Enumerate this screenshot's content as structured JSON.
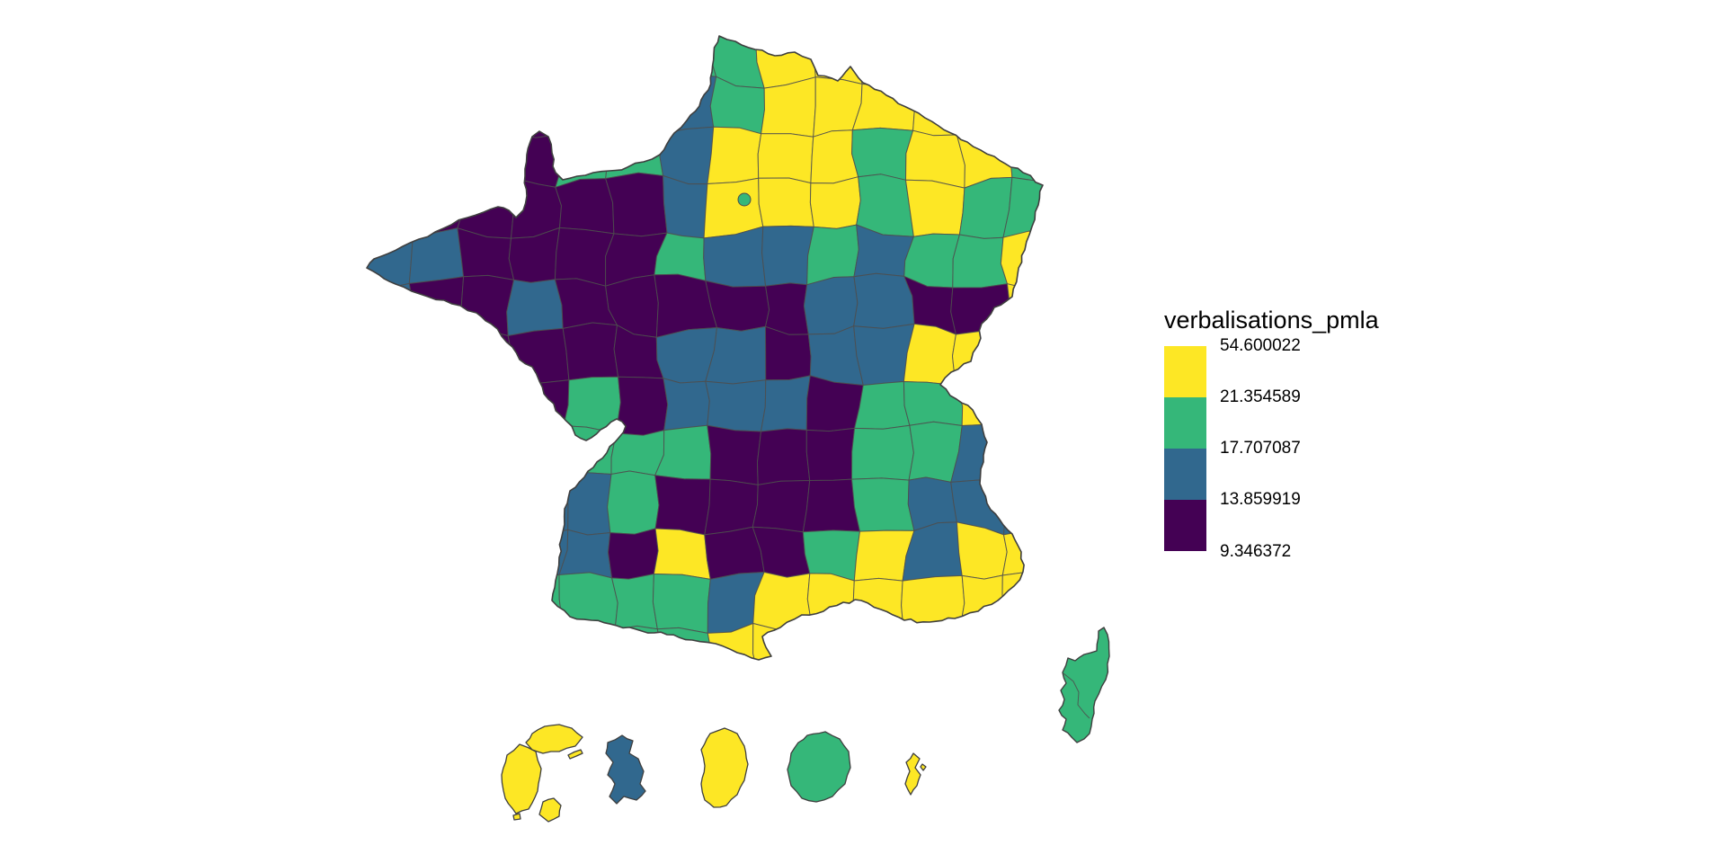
{
  "chart_data": {
    "type": "choropleth",
    "title": "",
    "background": "#FFFFFF",
    "legend": {
      "position": "right",
      "title": "verbalisations_pmla",
      "labels": [
        "54.600022",
        "21.354589",
        "17.707087",
        "13.859919",
        "9.346372"
      ],
      "bins": [
        {
          "range": "21.354589 - 54.600022",
          "color": "#FDE725"
        },
        {
          "range": "17.707087 - 21.354589",
          "color": "#35B779"
        },
        {
          "range": "13.859919 - 17.707087",
          "color": "#31688E"
        },
        {
          "range": "9.346372 - 13.859919",
          "color": "#440154"
        }
      ]
    },
    "map": {
      "region": "France departements with Corse and overseas insets",
      "palette": {
        "Y": "#FDE725",
        "G": "#35B779",
        "B": "#31688E",
        "D": "#440154"
      },
      "border_color": "#4D4D4D",
      "outline_color": "#3F3F3F",
      "grid_rows": [
        "DDDDDDGGYYYYYY",
        "DDDDDDBGYYYYYY",
        "DDDDGGBYYYGYYG",
        "DDDDDDBYYYGYGG",
        "BBDDDDGBBGBGGY",
        "BDDBDDDDDBBDDY",
        "DDDDDDBBDBBYYY",
        "DDDDGDBBBDGGYG",
        "GGGGGGGDDDGGBB",
        "BBBBBGDDDDGBBB",
        "BBBBBDYDDGYBYY",
        "GGGGGGGBYYYYYY",
        "GGGGGGGYYYYYYY"
      ],
      "paris_dot_color": "G",
      "corsica_color": "G",
      "overseas": [
        {
          "name": "guadeloupe-inset",
          "color": "Y"
        },
        {
          "name": "martinique-inset",
          "color": "B"
        },
        {
          "name": "guyane-inset",
          "color": "Y"
        },
        {
          "name": "reunion-inset",
          "color": "G"
        },
        {
          "name": "mayotte-inset",
          "color": "Y"
        }
      ]
    }
  }
}
